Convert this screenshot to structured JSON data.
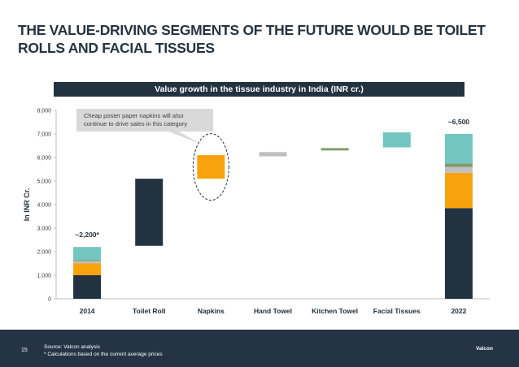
{
  "slide": {
    "title": "THE VALUE-DRIVING SEGMENTS OF THE FUTURE WOULD BE TOILET ROLLS AND FACIAL TISSUES",
    "banner": "Value growth in the tissue industry in India (INR cr.)",
    "page_number": "15",
    "source": "Source: Valcon analysis",
    "footnote": "* Calculations based on the current average prices",
    "brand": "Valcon"
  },
  "colors": {
    "navy": "#233240",
    "orange": "#f8a30c",
    "grey": "#bfbfbf",
    "olive": "#7f9a6b",
    "teal": "#73c6c2",
    "callout_bg": "#d9d9d9"
  },
  "chart_data": {
    "type": "bar",
    "subtype": "waterfall",
    "ylabel": "In INR Cr.",
    "ylim": [
      0,
      8000
    ],
    "yticks": [
      "0",
      "1,000",
      "2,000",
      "3,000",
      "4,000",
      "5,000",
      "6,000",
      "7,000",
      "8,000"
    ],
    "grid": false,
    "categories": [
      "2014",
      "Toilet Roll",
      "Napkins",
      "Hand Towel",
      "Kitchen Towel",
      "Facial Tissues",
      "2022"
    ],
    "totals": [
      {
        "category": "2014",
        "label": "~2,200*",
        "segments": [
          {
            "color": "navy",
            "value": 1000
          },
          {
            "color": "orange",
            "value": 500
          },
          {
            "color": "grey",
            "value": 100
          },
          {
            "color": "olive",
            "value": 50
          },
          {
            "color": "teal",
            "value": 550
          }
        ]
      },
      {
        "category": "2022",
        "label": "~6,500",
        "segments": [
          {
            "color": "navy",
            "value": 3850
          },
          {
            "color": "orange",
            "value": 1500
          },
          {
            "color": "grey",
            "value": 250
          },
          {
            "color": "olive",
            "value": 150
          },
          {
            "color": "teal",
            "value": 1250
          }
        ]
      }
    ],
    "increments": [
      {
        "category": "Toilet Roll",
        "color": "navy",
        "start": 2250,
        "end": 5100
      },
      {
        "category": "Napkins",
        "color": "orange",
        "start": 5100,
        "end": 6100
      },
      {
        "category": "Hand Towel",
        "color": "grey",
        "start": 6050,
        "end": 6230
      },
      {
        "category": "Kitchen Towel",
        "color": "olive",
        "start": 6300,
        "end": 6400
      },
      {
        "category": "Facial Tissues",
        "color": "teal",
        "start": 6430,
        "end": 7070
      }
    ],
    "annotation": {
      "text_lines": [
        "Cheap poster paper napkins will also",
        "continue to drive sales in this category"
      ],
      "target": "Napkins"
    }
  }
}
